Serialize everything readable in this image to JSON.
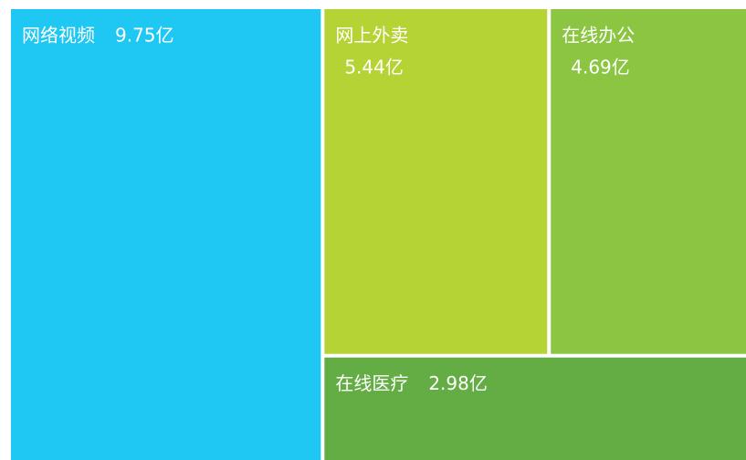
{
  "chart_data": {
    "type": "treemap",
    "categories": [
      "网络视频",
      "网上外卖",
      "在线办公",
      "在线医疗"
    ],
    "values": [
      9.75,
      5.44,
      4.69,
      2.98
    ],
    "value_labels": [
      "9.75亿",
      "5.44亿",
      "4.69亿",
      "2.98亿"
    ],
    "colors": [
      "#1fc8f2",
      "#b5d334",
      "#8bc541",
      "#63ad44"
    ]
  }
}
